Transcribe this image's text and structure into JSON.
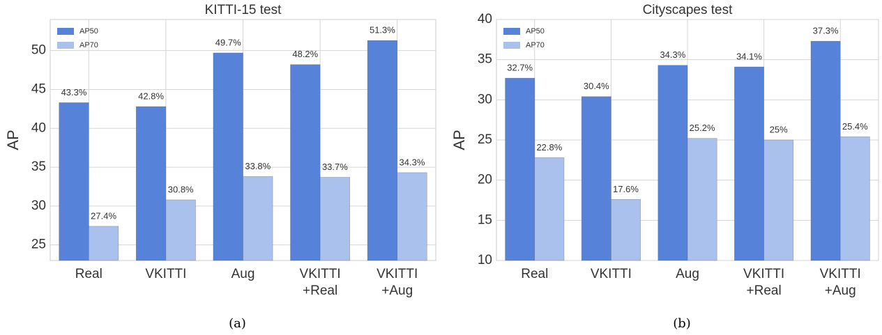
{
  "chart_data": [
    {
      "type": "bar",
      "title": "KITTI-15 test",
      "ylabel": "AP",
      "caption": "(a)",
      "categories": [
        "Real",
        "VKITTI",
        "Aug",
        "VKITTI\n+Real",
        "VKITTI\n+Aug"
      ],
      "series": [
        {
          "name": "AP50",
          "color": "#5682da",
          "values": [
            43.3,
            42.8,
            49.7,
            48.2,
            51.3
          ],
          "value_labels": [
            "43.3%",
            "42.8%",
            "49.7%",
            "48.2%",
            "51.3%"
          ]
        },
        {
          "name": "AP70",
          "color": "#abc1ed",
          "values": [
            27.4,
            30.8,
            33.8,
            33.7,
            34.3
          ],
          "value_labels": [
            "27.4%",
            "30.8%",
            "33.8%",
            "33.7%",
            "34.3%"
          ]
        }
      ],
      "ylim": [
        23,
        54
      ],
      "yticks": [
        25,
        30,
        35,
        40,
        45,
        50
      ],
      "grid": true,
      "legend": "upper left"
    },
    {
      "type": "bar",
      "title": "Cityscapes test",
      "ylabel": "AP",
      "caption": "(b)",
      "categories": [
        "Real",
        "VKITTI",
        "Aug",
        "VKITTI\n+Real",
        "VKITTI\n+Aug"
      ],
      "series": [
        {
          "name": "AP50",
          "color": "#5682da",
          "values": [
            32.7,
            30.4,
            34.3,
            34.1,
            37.3
          ],
          "value_labels": [
            "32.7%",
            "30.4%",
            "34.3%",
            "34.1%",
            "37.3%"
          ]
        },
        {
          "name": "AP70",
          "color": "#abc1ed",
          "values": [
            22.8,
            17.6,
            25.2,
            25,
            25.4
          ],
          "value_labels": [
            "22.8%",
            "17.6%",
            "25.2%",
            "25%",
            "25.4%"
          ]
        }
      ],
      "ylim": [
        10,
        40
      ],
      "yticks": [
        10,
        15,
        20,
        25,
        30,
        35,
        40
      ],
      "grid": true,
      "legend": "upper left"
    }
  ]
}
